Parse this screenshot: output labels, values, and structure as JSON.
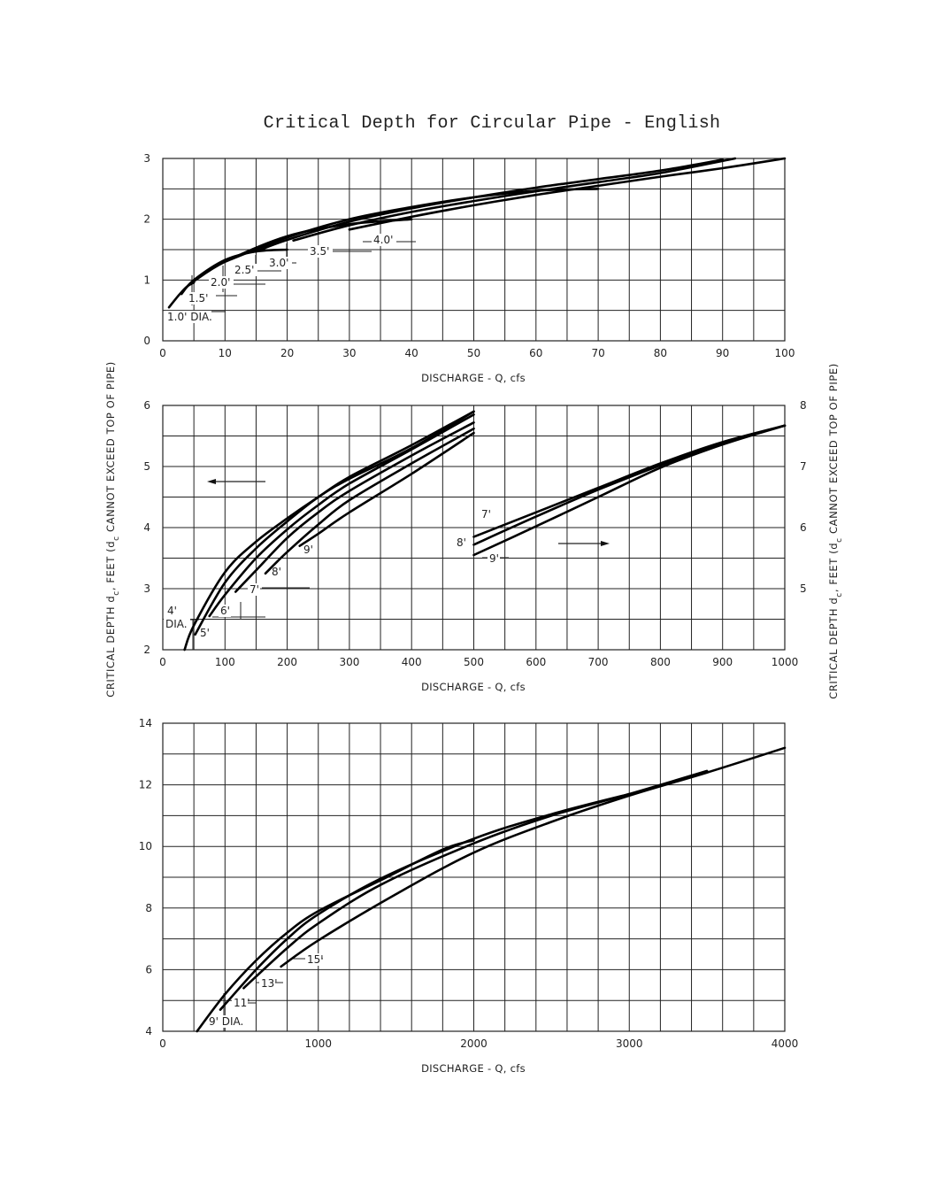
{
  "title": "Critical Depth for Circular Pipe - English",
  "y_axis_label": "CRITICAL DEPTH   d",
  "y_axis_label_full": "CRITICAL DEPTH  dc, FEET (dc CANNOT EXCEED TOP OF PIPE)",
  "y_axis_sub": "c",
  "y_axis_label_rest": ", FEET (d",
  "y_axis_label_end": " CANNOT EXCEED TOP OF PIPE)",
  "x_axis_label": "DISCHARGE - Q, cfs",
  "chart_data": [
    {
      "type": "line",
      "title": "Critical Depth for Circular Pipe - English (1.0'-4.0' dia.)",
      "xlabel": "DISCHARGE - Q, cfs",
      "ylabel": "CRITICAL DEPTH dc, FEET (dc CANNOT EXCEED TOP OF PIPE)",
      "xlim": [
        0,
        100
      ],
      "ylim": [
        0,
        3
      ],
      "xticks": [
        0,
        10,
        20,
        30,
        40,
        50,
        60,
        70,
        80,
        90,
        100
      ],
      "yticks": [
        0,
        1,
        2,
        3
      ],
      "grid": true,
      "series": [
        {
          "name": "1.0' DIA.",
          "x": [
            1,
            2,
            3,
            4,
            5
          ],
          "y": [
            0.55,
            0.68,
            0.8,
            0.9,
            0.96
          ]
        },
        {
          "name": "1.5'",
          "x": [
            3,
            5,
            10,
            15,
            20
          ],
          "y": [
            0.77,
            1.0,
            1.33,
            1.47,
            1.5
          ]
        },
        {
          "name": "2.0'",
          "x": [
            5,
            10,
            20,
            30,
            40
          ],
          "y": [
            0.98,
            1.3,
            1.72,
            1.92,
            2.0
          ]
        },
        {
          "name": "2.5'",
          "x": [
            10,
            20,
            30,
            40,
            50,
            60,
            70
          ],
          "y": [
            1.3,
            1.7,
            2.0,
            2.2,
            2.36,
            2.47,
            2.5
          ]
        },
        {
          "name": "3.0'",
          "x": [
            15,
            20,
            30,
            40,
            50,
            60,
            70,
            80,
            90
          ],
          "y": [
            1.47,
            1.66,
            1.96,
            2.18,
            2.36,
            2.52,
            2.66,
            2.8,
            2.98
          ]
        },
        {
          "name": "3.5'",
          "x": [
            21,
            30,
            40,
            50,
            60,
            70,
            80,
            92
          ],
          "y": [
            1.65,
            1.9,
            2.12,
            2.3,
            2.46,
            2.61,
            2.76,
            3.0
          ]
        },
        {
          "name": "4.0'",
          "x": [
            30,
            40,
            50,
            60,
            70,
            80,
            90,
            100
          ],
          "y": [
            1.83,
            2.04,
            2.23,
            2.4,
            2.55,
            2.7,
            2.84,
            3.0
          ]
        }
      ],
      "annotations": [
        "1.0' DIA.",
        "1.5'",
        "2.0'",
        "2.5'",
        "3.0'",
        "3.5'",
        "4.0'"
      ]
    },
    {
      "type": "line",
      "title": "Critical Depth (4'-9' dia.), Q 0-500 left axis",
      "xlabel": "DISCHARGE - Q, cfs",
      "ylabel": "CRITICAL DEPTH dc, FEET",
      "xlim": [
        0,
        500
      ],
      "ylim": [
        2,
        6
      ],
      "xticks": [
        0,
        100,
        200,
        300,
        400,
        500
      ],
      "yticks": [
        2,
        3,
        4,
        5,
        6
      ],
      "grid": true,
      "series": [
        {
          "name": "4' DIA.",
          "x": [
            35,
            50,
            100,
            150,
            200,
            250,
            300,
            400,
            500
          ],
          "y": [
            2.0,
            2.4,
            3.27,
            3.77,
            4.15,
            4.5,
            4.83,
            5.35,
            5.9
          ]
        },
        {
          "name": "5'",
          "x": [
            52,
            100,
            150,
            200,
            250,
            300,
            400,
            500
          ],
          "y": [
            2.25,
            3.1,
            3.66,
            4.1,
            4.5,
            4.8,
            5.3,
            5.9
          ]
        },
        {
          "name": "6'",
          "x": [
            75,
            100,
            150,
            200,
            250,
            300,
            400,
            500
          ],
          "y": [
            2.55,
            2.9,
            3.5,
            3.97,
            4.37,
            4.72,
            5.28,
            5.85
          ]
        },
        {
          "name": "7'",
          "x": [
            117,
            150,
            200,
            250,
            300,
            400,
            500
          ],
          "y": [
            2.95,
            3.3,
            3.83,
            4.25,
            4.6,
            5.18,
            5.72
          ]
        },
        {
          "name": "8'",
          "x": [
            165,
            200,
            250,
            300,
            400,
            500
          ],
          "y": [
            3.25,
            3.6,
            4.05,
            4.45,
            5.05,
            5.62
          ]
        },
        {
          "name": "9'",
          "x": [
            220,
            250,
            300,
            400,
            500
          ],
          "y": [
            3.7,
            3.9,
            4.25,
            4.88,
            5.55
          ]
        }
      ],
      "annotations": [
        "4' DIA.",
        "5'",
        "6'",
        "7'",
        "8'",
        "9'",
        "arrow pointing left (read left axis)"
      ]
    },
    {
      "type": "line",
      "title": "Critical Depth (7'-9' dia.), Q 500-1000 right axis",
      "xlabel": "DISCHARGE - Q, cfs",
      "ylabel": "CRITICAL DEPTH dc, FEET",
      "xlim": [
        500,
        1000
      ],
      "ylim": [
        4,
        8
      ],
      "xticks": [
        500,
        600,
        700,
        800,
        900,
        1000
      ],
      "yticks": [
        5,
        6,
        7,
        8
      ],
      "grid": true,
      "series": [
        {
          "name": "7'",
          "x": [
            500,
            600,
            700,
            800,
            900,
            1000
          ],
          "y": [
            5.85,
            6.25,
            6.65,
            7.05,
            7.4,
            7.67
          ]
        },
        {
          "name": "8'",
          "x": [
            500,
            600,
            700,
            800,
            900,
            1000
          ],
          "y": [
            5.72,
            6.18,
            6.62,
            7.02,
            7.38,
            7.67
          ]
        },
        {
          "name": "9'",
          "x": [
            500,
            600,
            700,
            800,
            900,
            1000
          ],
          "y": [
            5.55,
            6.02,
            6.5,
            6.98,
            7.36,
            7.67
          ]
        }
      ],
      "annotations": [
        "7'",
        "8'",
        "9'",
        "arrow pointing right (read right axis)"
      ]
    },
    {
      "type": "line",
      "title": "Critical Depth (9'-15' dia.)",
      "xlabel": "DISCHARGE - Q, cfs",
      "ylabel": "CRITICAL DEPTH dc, FEET",
      "xlim": [
        0,
        4000
      ],
      "ylim": [
        4,
        14
      ],
      "xticks": [
        0,
        1000,
        2000,
        3000,
        4000
      ],
      "yticks": [
        4,
        6,
        8,
        10,
        12,
        14
      ],
      "grid": true,
      "series": [
        {
          "name": "9' DIA.",
          "x": [
            220,
            400,
            600,
            800,
            1000,
            1400,
            1800,
            2000
          ],
          "y": [
            4.0,
            5.2,
            6.3,
            7.2,
            7.9,
            8.9,
            9.9,
            10.2
          ]
        },
        {
          "name": "11'",
          "x": [
            370,
            600,
            800,
            1000,
            1400,
            2000,
            2500,
            3000
          ],
          "y": [
            4.7,
            6.0,
            7.0,
            7.8,
            8.95,
            10.25,
            11.05,
            11.7
          ]
        },
        {
          "name": "13'",
          "x": [
            520,
            800,
            1000,
            1400,
            2000,
            2500,
            3000,
            3500
          ],
          "y": [
            5.4,
            6.7,
            7.5,
            8.75,
            10.1,
            11.0,
            11.7,
            12.45
          ]
        },
        {
          "name": "15'",
          "x": [
            760,
            1000,
            1500,
            2000,
            2500,
            3000,
            3500,
            4000
          ],
          "y": [
            6.1,
            6.95,
            8.45,
            9.8,
            10.8,
            11.65,
            12.4,
            13.2
          ]
        }
      ],
      "annotations": [
        "9' DIA.",
        "11'",
        "13'",
        "15'"
      ]
    }
  ]
}
